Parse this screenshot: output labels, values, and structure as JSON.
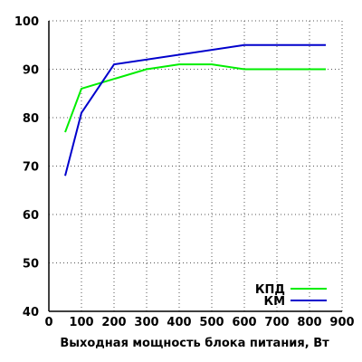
{
  "chart_data": {
    "type": "line",
    "title": "",
    "xlabel": "Выходная мощность блока питания, Вт",
    "ylabel": "",
    "xlim": [
      0,
      900
    ],
    "ylim": [
      40,
      100
    ],
    "x_ticks": [
      0,
      100,
      200,
      300,
      400,
      500,
      600,
      700,
      800,
      900
    ],
    "y_ticks": [
      40,
      50,
      60,
      70,
      80,
      90,
      100
    ],
    "grid": true,
    "legend_position": "bottom-right",
    "series": [
      {
        "name": "КПД",
        "color": "#00ee00",
        "x": [
          50,
          100,
          200,
          300,
          400,
          500,
          600,
          850
        ],
        "y": [
          77,
          86,
          88,
          90,
          91,
          91,
          90,
          90
        ]
      },
      {
        "name": "КМ",
        "color": "#0000cc",
        "x": [
          50,
          100,
          200,
          600,
          850
        ],
        "y": [
          68,
          81,
          91,
          95,
          95
        ]
      }
    ]
  }
}
